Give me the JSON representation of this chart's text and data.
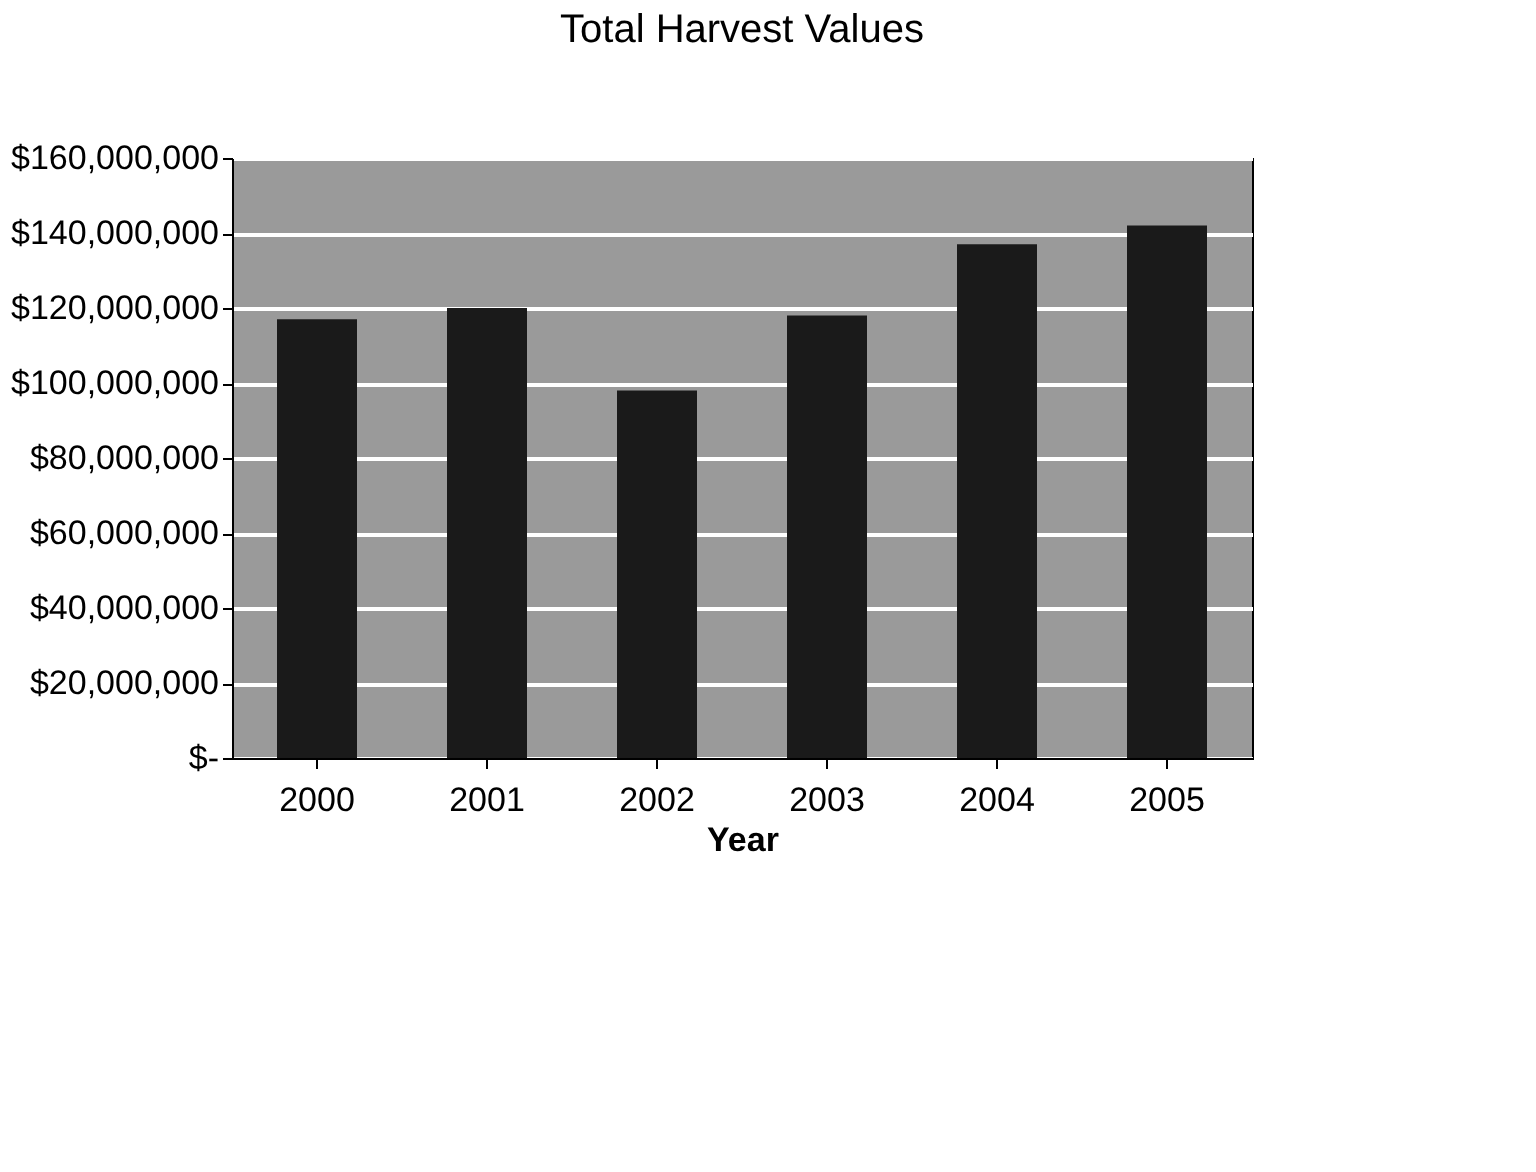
{
  "chart_data": {
    "type": "bar",
    "title": "Total Harvest Values",
    "xlabel": "Year",
    "categories": [
      "2000",
      "2001",
      "2002",
      "2003",
      "2004",
      "2005"
    ],
    "values": [
      117000000,
      120000000,
      98000000,
      118000000,
      137000000,
      142000000
    ],
    "color": "#1a1a1a",
    "ylim": [
      0,
      160000000
    ],
    "yticks": [
      {
        "value": 0,
        "label": "$-"
      },
      {
        "value": 20000000,
        "label": "$20,000,000"
      },
      {
        "value": 40000000,
        "label": "$40,000,000"
      },
      {
        "value": 60000000,
        "label": "$60,000,000"
      },
      {
        "value": 80000000,
        "label": "$80,000,000"
      },
      {
        "value": 100000000,
        "label": "$100,000,000"
      },
      {
        "value": 120000000,
        "label": "$120,000,000"
      },
      {
        "value": 140000000,
        "label": "$140,000,000"
      },
      {
        "value": 160000000,
        "label": "$160,000,000"
      }
    ],
    "grid": "y"
  }
}
